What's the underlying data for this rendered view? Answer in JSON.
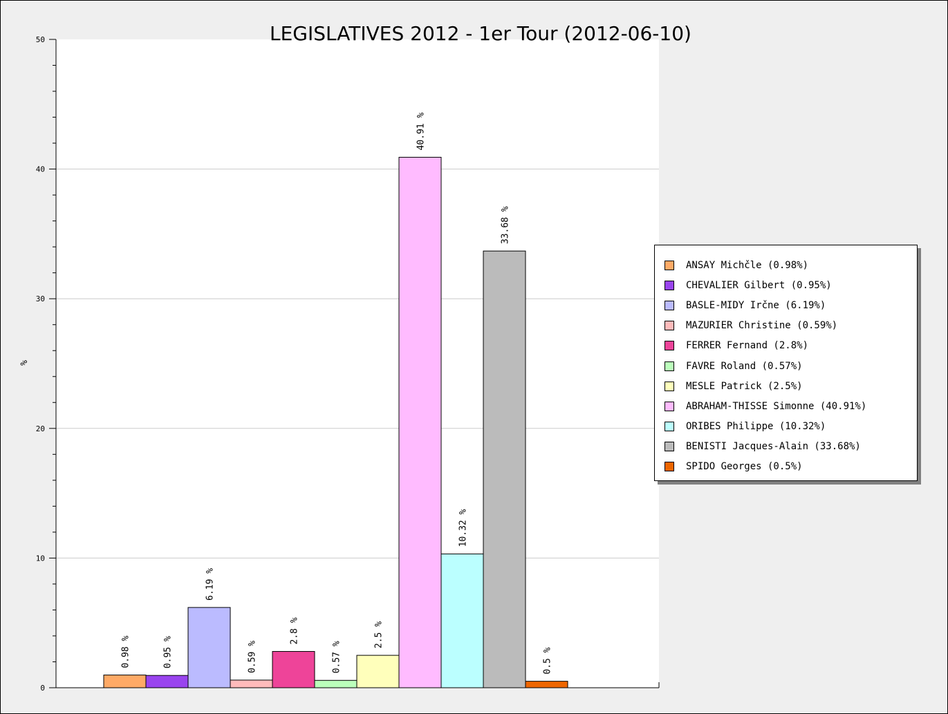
{
  "chart_data": {
    "type": "bar",
    "title": "LEGISLATIVES 2012 - 1er Tour (2012-06-10)",
    "xlabel": "",
    "ylabel": "%",
    "ylim": [
      0,
      50
    ],
    "yticks": [
      "0",
      "10",
      "20",
      "30",
      "40",
      "50"
    ],
    "grid": true,
    "legend_position": "right",
    "value_suffix": " %",
    "bars": [
      {
        "value": 0.98,
        "label": "0.98 %",
        "color": "#ffaa66"
      },
      {
        "value": 0.95,
        "label": "0.95 %",
        "color": "#9944ee"
      },
      {
        "value": 6.19,
        "label": "6.19 %",
        "color": "#bbbbff"
      },
      {
        "value": 0.59,
        "label": "0.59 %",
        "color": "#ffbbbb"
      },
      {
        "value": 2.8,
        "label": "2.8 %",
        "color": "#ee4499"
      },
      {
        "value": 0.57,
        "label": "0.57 %",
        "color": "#bbffbb"
      },
      {
        "value": 2.5,
        "label": "2.5 %",
        "color": "#ffffbb"
      },
      {
        "value": 40.91,
        "label": "40.91 %",
        "color": "#ffbbff"
      },
      {
        "value": 10.32,
        "label": "10.32 %",
        "color": "#bbffff"
      },
      {
        "value": 33.68,
        "label": "33.68 %",
        "color": "#bbbbbb"
      },
      {
        "value": 0.5,
        "label": "0.5 %",
        "color": "#ee6600"
      }
    ],
    "legend": [
      {
        "label": "ANSAY Michčle (0.98%)",
        "color": "#ffaa66"
      },
      {
        "label": "CHEVALIER Gilbert (0.95%)",
        "color": "#9944ee"
      },
      {
        "label": "BASLE-MIDY Irčne (6.19%)",
        "color": "#bbbbff"
      },
      {
        "label": "MAZURIER Christine (0.59%)",
        "color": "#ffbbbb"
      },
      {
        "label": "FERRER Fernand (2.8%)",
        "color": "#ee4499"
      },
      {
        "label": "FAVRE Roland (0.57%)",
        "color": "#bbffbb"
      },
      {
        "label": "MESLE Patrick (2.5%)",
        "color": "#ffffbb"
      },
      {
        "label": "ABRAHAM-THISSE Simonne (40.91%)",
        "color": "#ffbbff"
      },
      {
        "label": "ORIBES Philippe (10.32%)",
        "color": "#bbffff"
      },
      {
        "label": "BENISTI Jacques-Alain (33.68%)",
        "color": "#bbbbbb"
      },
      {
        "label": "SPIDO Georges (0.5%)",
        "color": "#ee6600"
      }
    ]
  }
}
